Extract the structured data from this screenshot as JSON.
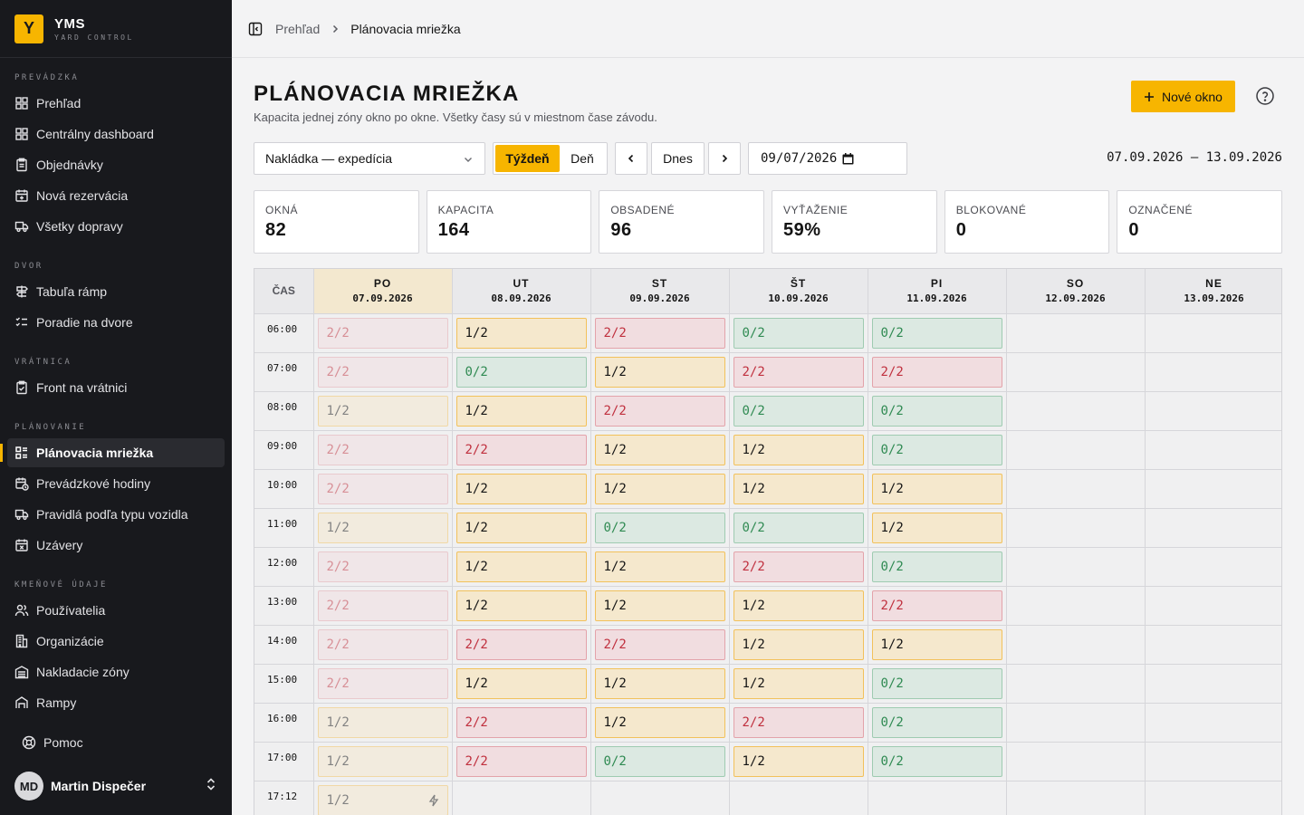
{
  "brand": {
    "logo_letter": "Y",
    "name": "YMS",
    "subtitle": "YARD CONTROL",
    "accent": "#f7b500"
  },
  "sidebar": {
    "sections": [
      {
        "title": "PREVÁDZKA",
        "items": [
          {
            "label": "Prehľad",
            "icon": "grid-icon"
          },
          {
            "label": "Centrálny dashboard",
            "icon": "grid-icon"
          },
          {
            "label": "Objednávky",
            "icon": "clipboard-icon"
          },
          {
            "label": "Nová rezervácia",
            "icon": "calendar-plus-icon"
          },
          {
            "label": "Všetky dopravy",
            "icon": "truck-icon"
          }
        ]
      },
      {
        "title": "DVOR",
        "items": [
          {
            "label": "Tabuľa rámp",
            "icon": "signpost-icon"
          },
          {
            "label": "Poradie na dvore",
            "icon": "list-check-icon"
          }
        ]
      },
      {
        "title": "VRÁTNICA",
        "items": [
          {
            "label": "Front na vrátnici",
            "icon": "clipboard-check-icon"
          }
        ]
      },
      {
        "title": "PLÁNOVANIE",
        "items": [
          {
            "label": "Plánovacia mriežka",
            "icon": "grid-list-icon",
            "active": true
          },
          {
            "label": "Prevádzkové hodiny",
            "icon": "calendar-clock-icon"
          },
          {
            "label": "Pravidlá podľa typu vozidla",
            "icon": "truck-icon"
          },
          {
            "label": "Uzávery",
            "icon": "calendar-x-icon"
          }
        ]
      },
      {
        "title": "KMEŇOVÉ ÚDAJE",
        "items": [
          {
            "label": "Používatelia",
            "icon": "users-icon"
          },
          {
            "label": "Organizácie",
            "icon": "building-icon"
          },
          {
            "label": "Nakladacie zóny",
            "icon": "warehouse-icon"
          },
          {
            "label": "Rampy",
            "icon": "ramp-icon"
          }
        ]
      }
    ],
    "help_label": "Pomoc",
    "user": {
      "initials": "MD",
      "name": "Martin Dispečer"
    }
  },
  "breadcrumb": {
    "parent": "Prehľad",
    "current": "Plánovacia mriežka"
  },
  "page": {
    "title": "Plánovacia mriežka",
    "subtitle": "Kapacita jednej zóny okno po okne. Všetky časy sú v miestnom čase závodu.",
    "new_button": "Nové okno"
  },
  "controls": {
    "zone_select": "Nakládka — expedícia",
    "view_week": "Týždeň",
    "view_day": "Deň",
    "today": "Dnes",
    "date_value": "09/07/2026",
    "range": "07.09.2026 – 13.09.2026"
  },
  "stats": [
    {
      "label": "Okná",
      "value": "82"
    },
    {
      "label": "Kapacita",
      "value": "164"
    },
    {
      "label": "Obsadené",
      "value": "96"
    },
    {
      "label": "Vyťaženie",
      "value": "59%"
    },
    {
      "label": "Blokované",
      "value": "0"
    },
    {
      "label": "Označené",
      "value": "0"
    }
  ],
  "grid": {
    "time_header": "ČAS",
    "days": [
      {
        "name": "PO",
        "date": "07.09.2026",
        "today": true
      },
      {
        "name": "UT",
        "date": "08.09.2026"
      },
      {
        "name": "ST",
        "date": "09.09.2026"
      },
      {
        "name": "ŠT",
        "date": "10.09.2026"
      },
      {
        "name": "PI",
        "date": "11.09.2026"
      },
      {
        "name": "SO",
        "date": "12.09.2026"
      },
      {
        "name": "NE",
        "date": "13.09.2026"
      }
    ],
    "rows": [
      {
        "time": "06:00",
        "cells": [
          "2/2",
          "1/2",
          "2/2",
          "0/2",
          "0/2",
          "",
          ""
        ]
      },
      {
        "time": "07:00",
        "cells": [
          "2/2",
          "0/2",
          "1/2",
          "2/2",
          "2/2",
          "",
          ""
        ]
      },
      {
        "time": "08:00",
        "cells": [
          "1/2",
          "1/2",
          "2/2",
          "0/2",
          "0/2",
          "",
          ""
        ]
      },
      {
        "time": "09:00",
        "cells": [
          "2/2",
          "2/2",
          "1/2",
          "1/2",
          "0/2",
          "",
          ""
        ]
      },
      {
        "time": "10:00",
        "cells": [
          "2/2",
          "1/2",
          "1/2",
          "1/2",
          "1/2",
          "",
          ""
        ]
      },
      {
        "time": "11:00",
        "cells": [
          "1/2",
          "1/2",
          "0/2",
          "0/2",
          "1/2",
          "",
          ""
        ]
      },
      {
        "time": "12:00",
        "cells": [
          "2/2",
          "1/2",
          "1/2",
          "2/2",
          "0/2",
          "",
          ""
        ]
      },
      {
        "time": "13:00",
        "cells": [
          "2/2",
          "1/2",
          "1/2",
          "1/2",
          "2/2",
          "",
          ""
        ]
      },
      {
        "time": "14:00",
        "cells": [
          "2/2",
          "2/2",
          "2/2",
          "1/2",
          "1/2",
          "",
          ""
        ]
      },
      {
        "time": "15:00",
        "cells": [
          "2/2",
          "1/2",
          "1/2",
          "1/2",
          "0/2",
          "",
          ""
        ]
      },
      {
        "time": "16:00",
        "cells": [
          "1/2",
          "2/2",
          "1/2",
          "2/2",
          "0/2",
          "",
          ""
        ]
      },
      {
        "time": "17:00",
        "cells": [
          "1/2",
          "2/2",
          "0/2",
          "1/2",
          "0/2",
          "",
          ""
        ]
      },
      {
        "time": "17:12",
        "cells": [
          "1/2",
          "",
          "",
          "",
          "",
          "",
          ""
        ]
      }
    ]
  }
}
